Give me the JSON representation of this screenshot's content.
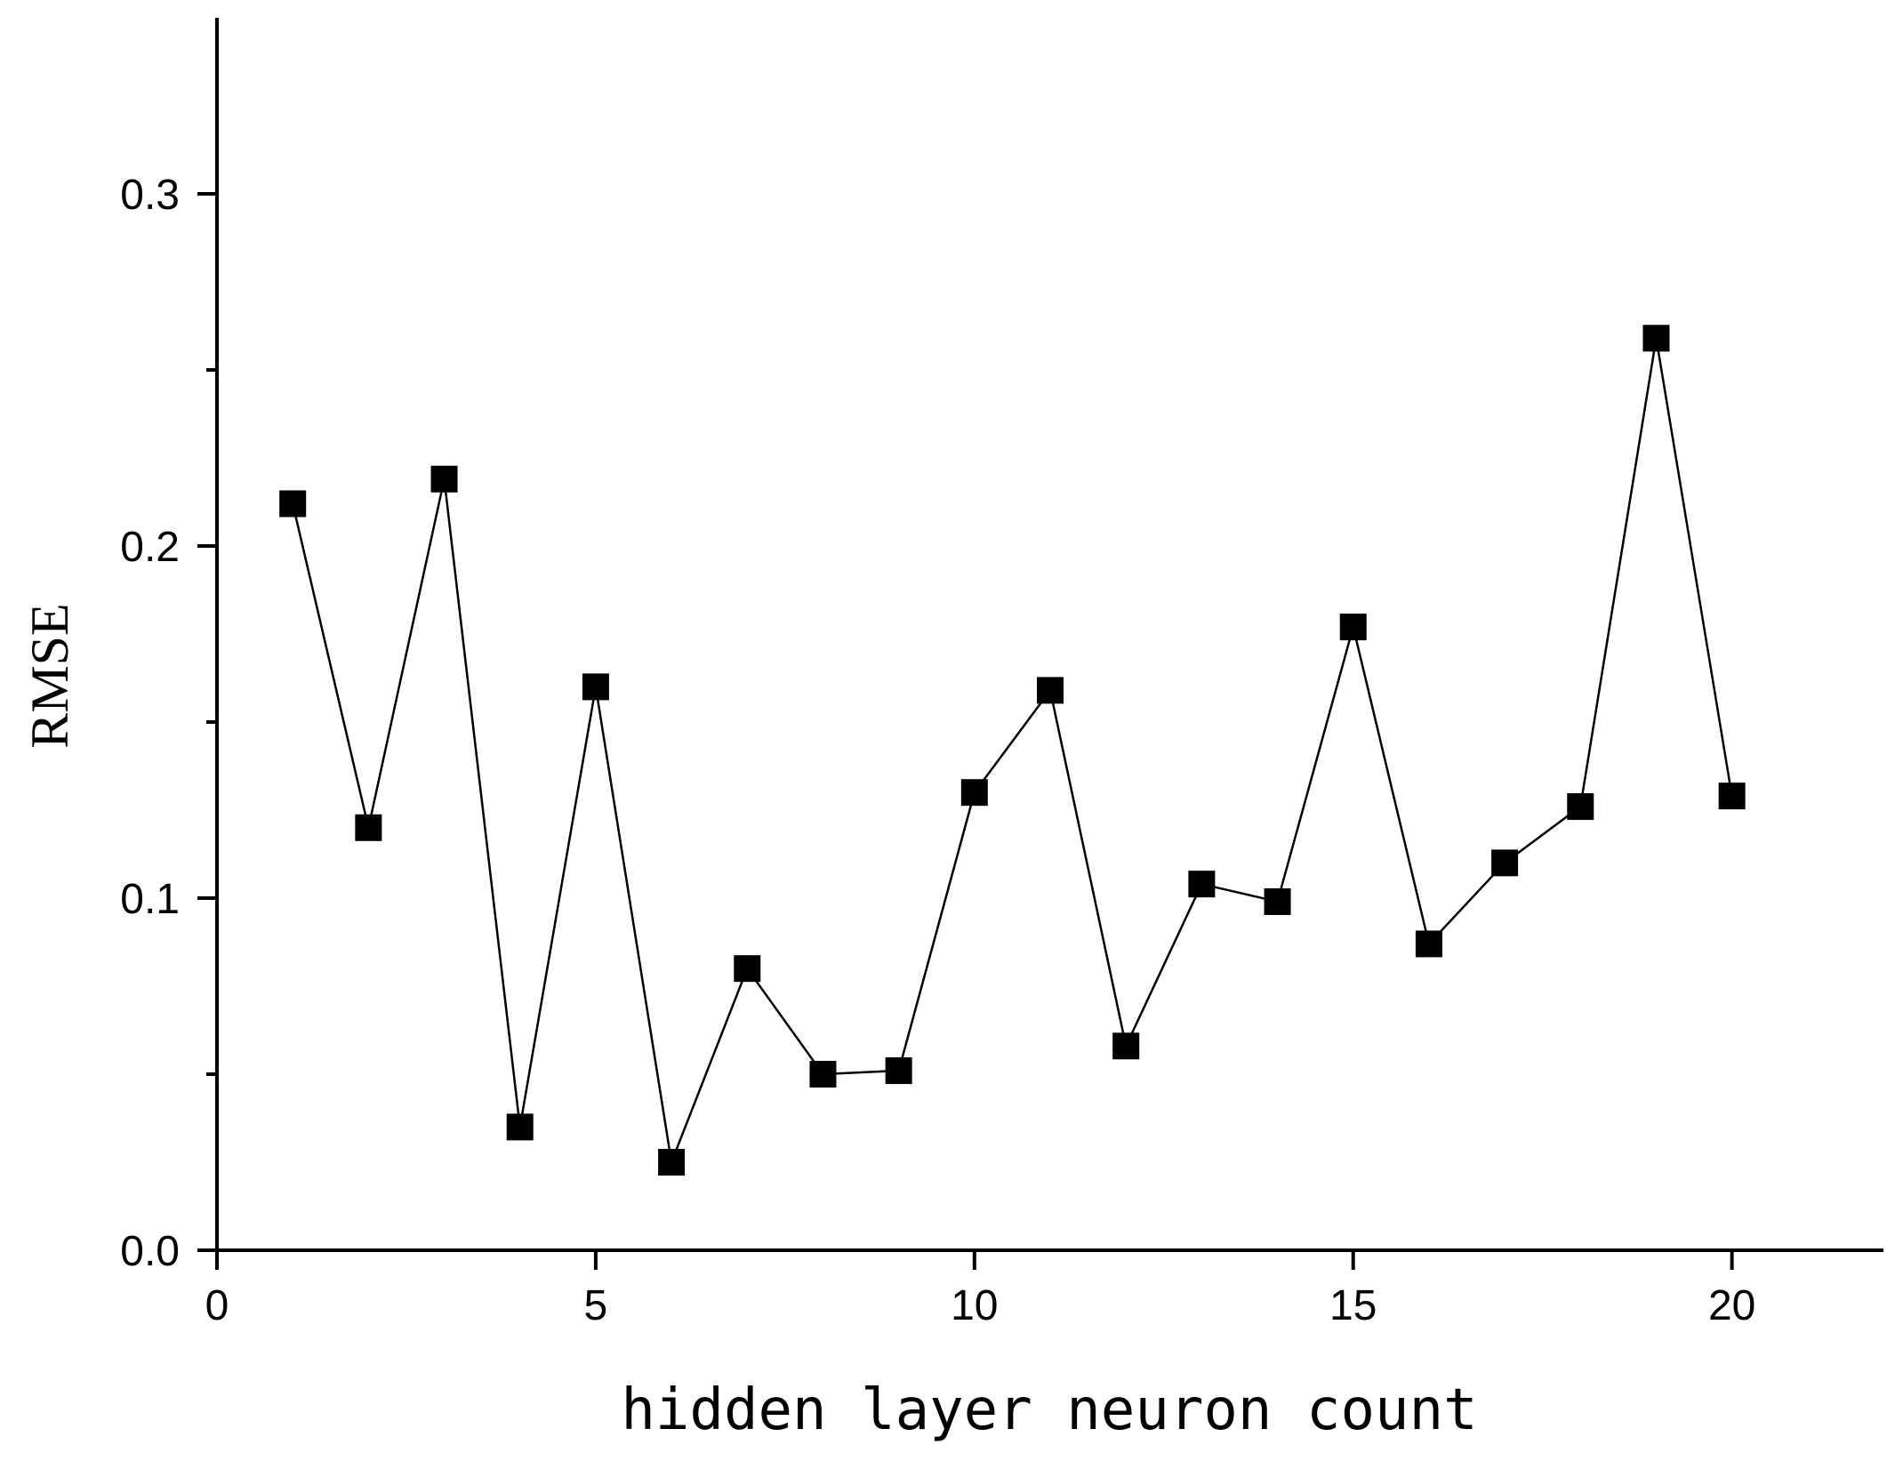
{
  "chart_data": {
    "type": "line",
    "xlabel": "hidden layer neuron count",
    "ylabel": "RMSE",
    "xlim": [
      0,
      22
    ],
    "ylim": [
      0,
      0.35
    ],
    "x_major_ticks": [
      0,
      5,
      10,
      15,
      20
    ],
    "x_tick_labels": [
      "0",
      "5",
      "10",
      "15",
      "20"
    ],
    "y_major_ticks": [
      0.0,
      0.1,
      0.2,
      0.3
    ],
    "y_tick_labels": [
      "0.0",
      "0.1",
      "0.2",
      "0.3"
    ],
    "y_minor_ticks": [
      0.05,
      0.15,
      0.25
    ],
    "grid": false,
    "legend": false,
    "marker": "square",
    "color": "#000000",
    "series": [
      {
        "x": [
          1,
          2,
          3,
          4,
          5,
          6,
          7,
          8,
          9,
          10,
          11,
          12,
          13,
          14,
          15,
          16,
          17,
          18,
          19,
          20
        ],
        "values": [
          0.212,
          0.12,
          0.219,
          0.035,
          0.16,
          0.025,
          0.08,
          0.05,
          0.051,
          0.13,
          0.159,
          0.058,
          0.104,
          0.099,
          0.177,
          0.087,
          0.11,
          0.126,
          0.259,
          0.129
        ]
      }
    ]
  }
}
